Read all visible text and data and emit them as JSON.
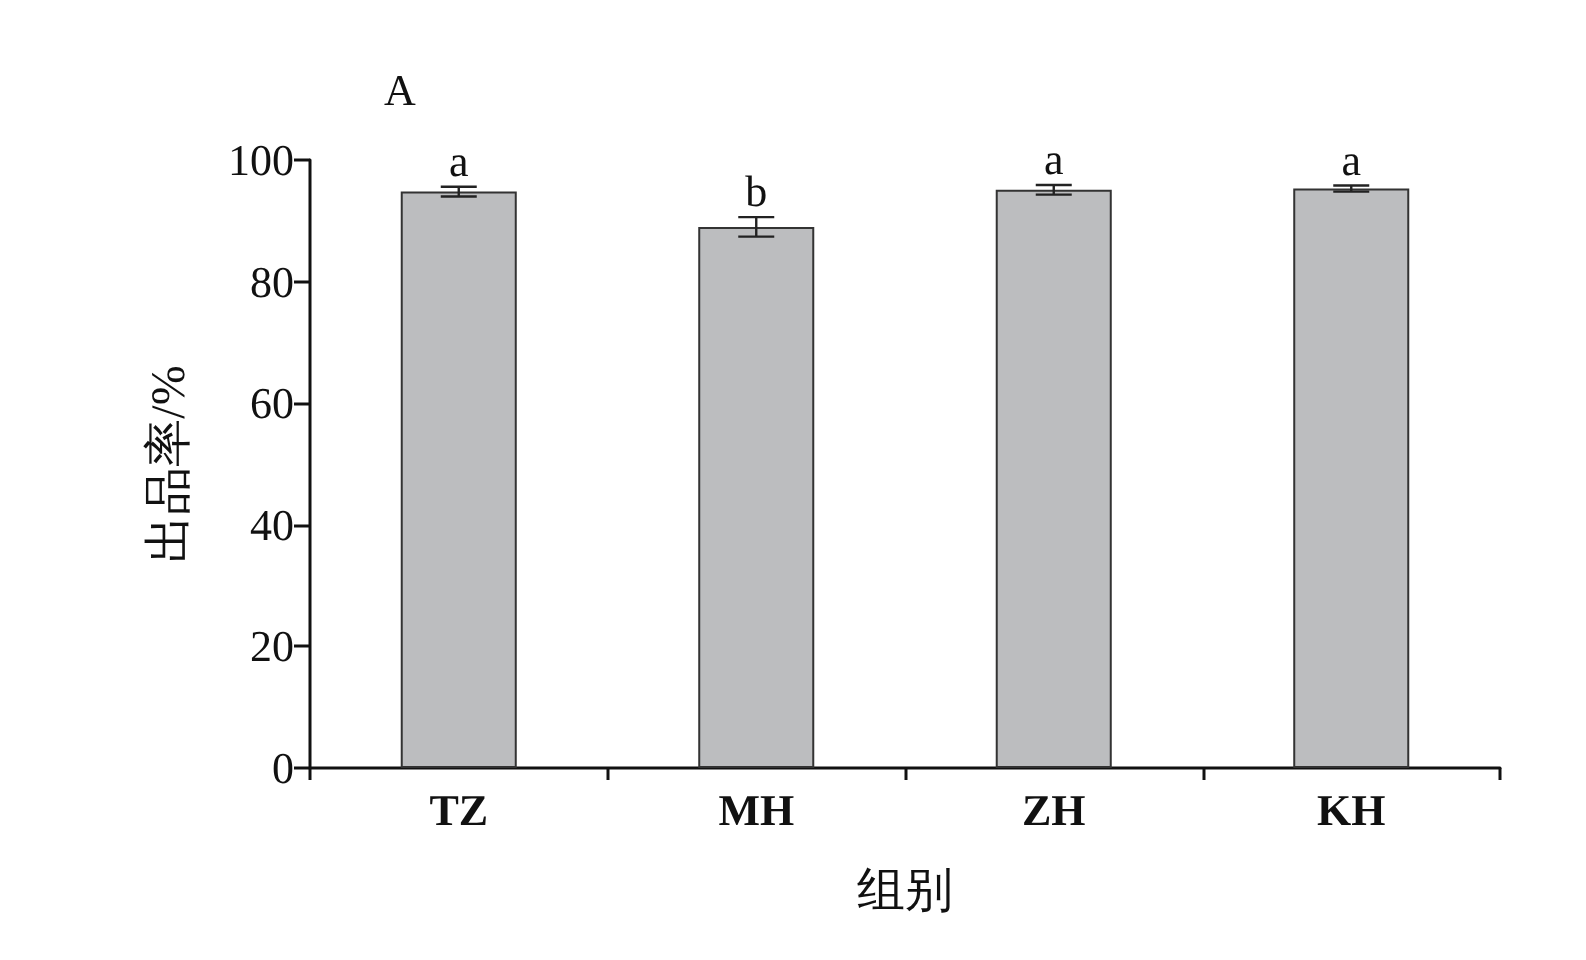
{
  "chart_data": {
    "type": "bar",
    "xlabel": "组别",
    "ylabel": "出品率/%",
    "categories": [
      "TZ",
      "MH",
      "ZH",
      "KH"
    ],
    "values": [
      94.8,
      89.0,
      95.1,
      95.3
    ],
    "errors": [
      0.8,
      1.6,
      0.8,
      0.5
    ],
    "color": "#bcbdbf",
    "ylim": [
      0,
      100
    ],
    "yticks": [
      0,
      20,
      40,
      60,
      80,
      100
    ],
    "grid": false,
    "annotations": [
      "A",
      {
        "text": "a",
        "x": "TZ",
        "y": 95.6
      },
      {
        "text": "b",
        "x": "MH",
        "y": 90.6
      },
      {
        "text": "a",
        "x": "ZH",
        "y": 95.9
      },
      {
        "text": "a",
        "x": "KH",
        "y": 95.8
      }
    ]
  }
}
